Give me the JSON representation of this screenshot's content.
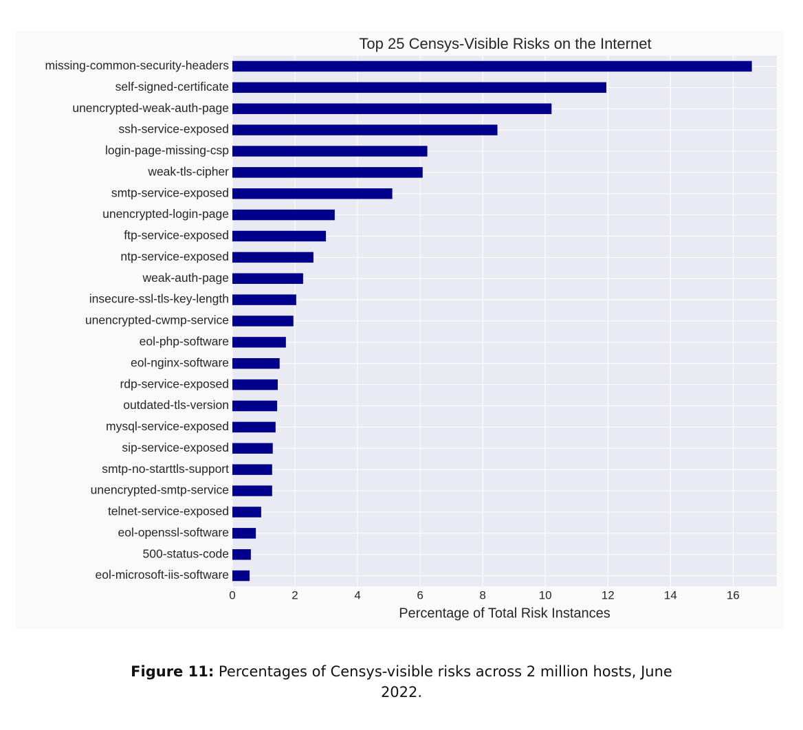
{
  "chart_data": {
    "type": "barh",
    "title": "Top 25 Censys-Visible Risks on the Internet",
    "x_label": "Percentage of Total Risk Instances",
    "categories": [
      "missing-common-security-headers",
      "self-signed-certificate",
      "unencrypted-weak-auth-page",
      "ssh-service-exposed",
      "login-page-missing-csp",
      "weak-tls-cipher",
      "smtp-service-exposed",
      "unencrypted-login-page",
      "ftp-service-exposed",
      "ntp-service-exposed",
      "weak-auth-page",
      "insecure-ssl-tls-key-length",
      "unencrypted-cwmp-service",
      "eol-php-software",
      "eol-nginx-software",
      "rdp-service-exposed",
      "outdated-tls-version",
      "mysql-service-exposed",
      "sip-service-exposed",
      "smtp-no-starttls-support",
      "unencrypted-smtp-service",
      "telnet-service-exposed",
      "eol-openssl-software",
      "500-status-code",
      "eol-microsoft-iis-software"
    ],
    "values": [
      16.6,
      11.95,
      10.2,
      8.47,
      6.23,
      6.08,
      5.11,
      3.27,
      2.99,
      2.59,
      2.26,
      2.04,
      1.95,
      1.71,
      1.51,
      1.45,
      1.43,
      1.38,
      1.29,
      1.27,
      1.27,
      0.92,
      0.75,
      0.59,
      0.55
    ],
    "color": "#00008b",
    "xlim": [
      0,
      17.4
    ],
    "xticks": [
      0,
      2,
      4,
      6,
      8,
      10,
      12,
      14,
      16
    ],
    "grid": true
  },
  "caption": {
    "label": "Figure 11:",
    "text": "Percentages of Censys-visible risks across 2 million hosts, June 2022."
  }
}
